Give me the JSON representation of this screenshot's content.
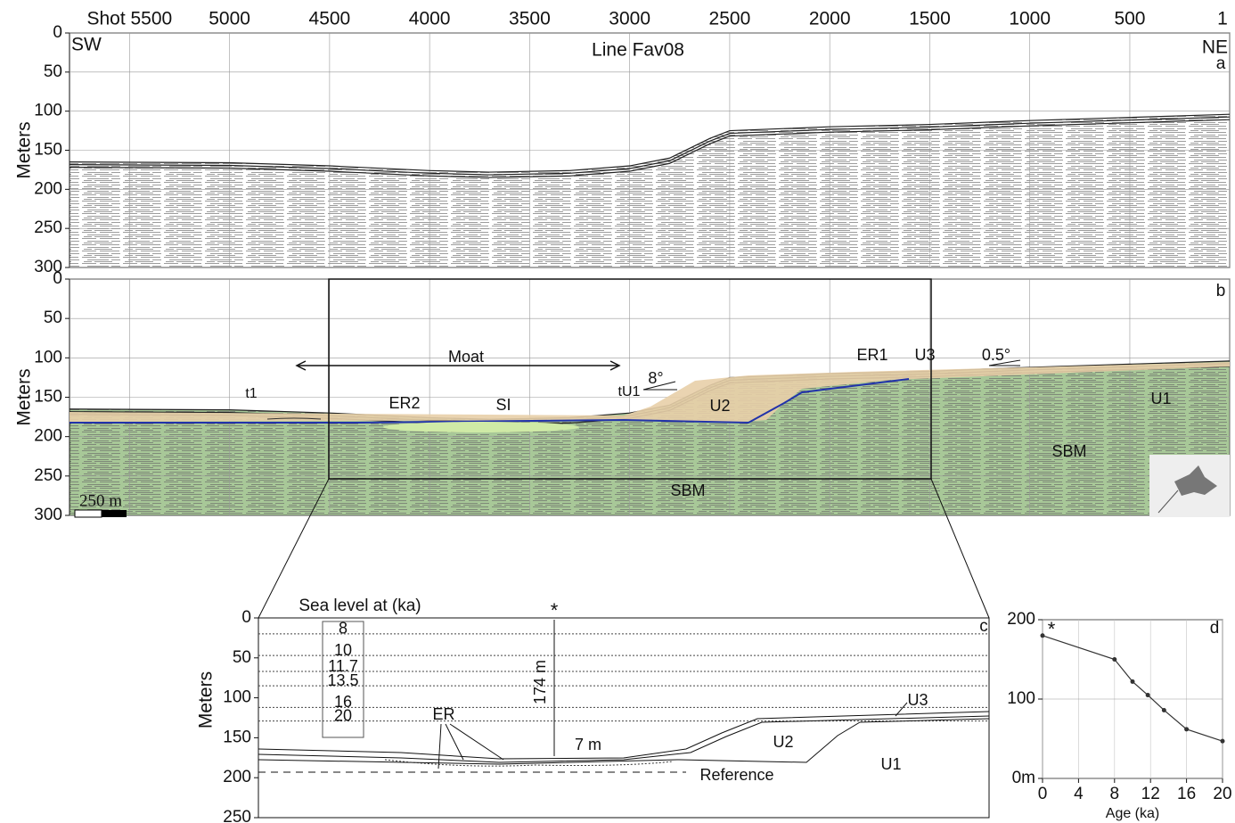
{
  "chart_data": [
    {
      "type": "seismic",
      "panel_label": "a",
      "title": "Line Fav08",
      "left_label": "SW",
      "right_label": "NE",
      "y_label": "Meters",
      "xlim": [
        5800,
        1
      ],
      "xticks": [
        {
          "value": 5500,
          "label": "Shot 5500"
        },
        5000,
        4500,
        4000,
        3500,
        3000,
        2500,
        2000,
        1500,
        1000,
        500,
        1
      ],
      "show_xtick_labels": true,
      "ylim": [
        0,
        300
      ],
      "yticks": [
        0,
        50,
        100,
        150,
        200,
        250,
        300
      ],
      "grid": true,
      "seafloor": {
        "x": [
          5800,
          5000,
          4500,
          4000,
          3700,
          3300,
          3000,
          2800,
          2600,
          2500,
          2000,
          1500,
          1000,
          500,
          1
        ],
        "values": [
          165,
          166,
          170,
          176,
          178,
          176,
          170,
          160,
          135,
          125,
          120,
          117,
          112,
          108,
          104
        ]
      },
      "color": "#222222",
      "fill": "#ffffff"
    },
    {
      "type": "seismic",
      "panel_label": "b",
      "y_label": "Meters",
      "xlim": [
        5800,
        1
      ],
      "xticks": [
        5500,
        5000,
        4500,
        4000,
        3500,
        3000,
        2500,
        2000,
        1500,
        1000,
        500,
        1
      ],
      "show_xtick_labels": false,
      "ylim": [
        0,
        300
      ],
      "yticks": [
        0,
        50,
        100,
        150,
        200,
        250,
        300
      ],
      "grid": true,
      "seafloor": {
        "x": [
          5800,
          5000,
          4500,
          4000,
          3700,
          3300,
          3000,
          2800,
          2600,
          2500,
          2000,
          1500,
          1000,
          500,
          1
        ],
        "values": [
          165,
          166,
          170,
          176,
          178,
          176,
          170,
          160,
          135,
          125,
          120,
          117,
          112,
          108,
          104
        ]
      },
      "color": "#222222",
      "fill": "#a8c898",
      "annotations": [
        "Moat",
        "8°",
        "tU1",
        "t1",
        "ER2",
        "SI",
        "U2",
        "ER1",
        "U3",
        "0.5°",
        "U1",
        "SBM",
        "SBM",
        "250 m"
      ]
    },
    {
      "type": "profile",
      "panel_label": "c",
      "y_label": "Meters",
      "legend_title": "Sea level at (ka)",
      "ylim": [
        0,
        250
      ],
      "yticks": [
        0,
        50,
        100,
        150,
        200,
        250
      ],
      "sea_levels": {
        "labels": [
          "8",
          "10",
          "11.7",
          "13.5",
          "16",
          "20"
        ],
        "values": [
          20,
          47,
          67,
          85,
          112,
          129
        ]
      },
      "annotations": [
        "*",
        "174 m",
        "ER",
        "7 m",
        "Reference",
        "U2",
        "U3",
        "U1"
      ]
    },
    {
      "type": "line",
      "panel_label": "d",
      "x_label": "Age (ka)",
      "marker_label": "*",
      "x": [
        0,
        8,
        10,
        11.7,
        13.5,
        16,
        20
      ],
      "values": [
        180,
        150,
        122,
        105,
        86,
        62,
        47
      ],
      "xlim": [
        0,
        20
      ],
      "xticks": [
        0,
        4,
        8,
        12,
        16,
        20
      ],
      "ylim": [
        0,
        200
      ],
      "yticks": [
        {
          "value": 0,
          "label": "0m"
        },
        100,
        200
      ],
      "grid": true,
      "color": "#333333"
    }
  ]
}
